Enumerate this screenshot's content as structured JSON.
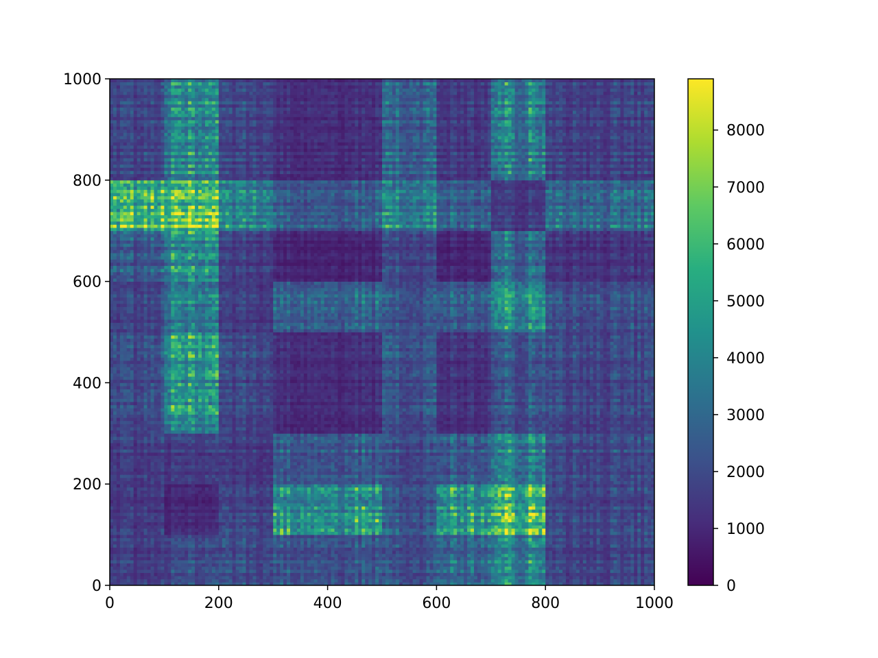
{
  "chart_data": {
    "type": "heatmap",
    "title": "",
    "xlabel": "",
    "ylabel": "",
    "xlim": [
      0,
      1000
    ],
    "ylim": [
      0,
      1000
    ],
    "x_ticks": [
      0,
      200,
      400,
      600,
      800,
      1000
    ],
    "y_ticks": [
      0,
      200,
      400,
      600,
      800,
      1000
    ],
    "x_tick_labels": [
      "0",
      "200",
      "400",
      "600",
      "800",
      "1000"
    ],
    "y_tick_labels": [
      "0",
      "200",
      "400",
      "600",
      "800",
      "1000"
    ],
    "colormap": "viridis",
    "colorbar": {
      "min": 0,
      "max": 8900,
      "ticks": [
        0,
        1000,
        2000,
        3000,
        4000,
        5000,
        6000,
        7000,
        8000
      ],
      "tick_labels": [
        "0",
        "1000",
        "2000",
        "3000",
        "4000",
        "5000",
        "6000",
        "7000",
        "8000"
      ]
    },
    "block_edges": [
      0,
      100,
      200,
      300,
      500,
      600,
      700,
      800,
      1000
    ],
    "block_rows": [
      [
        1500,
        1800,
        1900,
        2200,
        2000,
        2800,
        3800,
        1700
      ],
      [
        1400,
        900,
        1700,
        4300,
        2200,
        4400,
        5900,
        1800
      ],
      [
        1600,
        1500,
        1500,
        2500,
        2000,
        2500,
        3900,
        2000
      ],
      [
        1900,
        4100,
        1800,
        1100,
        2100,
        1200,
        2200,
        1800
      ],
      [
        1800,
        3500,
        1600,
        2900,
        2300,
        2600,
        4600,
        2200
      ],
      [
        2400,
        4000,
        1600,
        900,
        1800,
        900,
        3000,
        1300
      ],
      [
        6000,
        6400,
        4200,
        2700,
        4000,
        2800,
        1600,
        3200
      ],
      [
        1800,
        3800,
        1800,
        1200,
        2700,
        1500,
        3700,
        1700
      ]
    ]
  }
}
